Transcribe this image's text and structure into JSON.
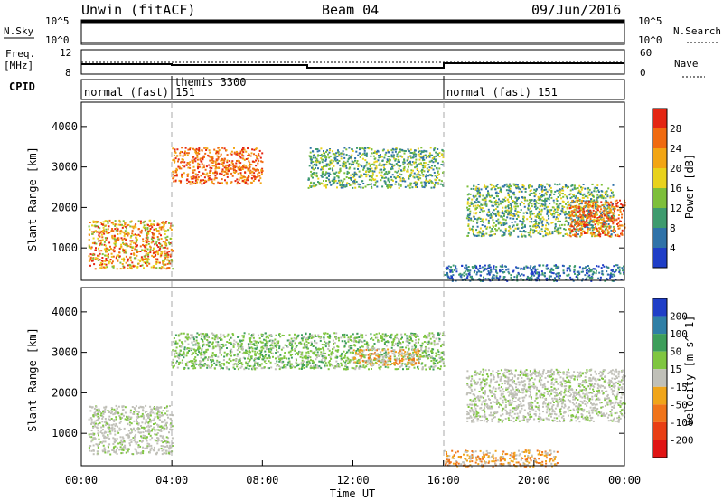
{
  "header": {
    "station": "Unwin (fitACF)",
    "beam": "Beam 04",
    "date": "09/Jun/2016"
  },
  "strips": {
    "nsky": {
      "label": "N.Sky",
      "ticks": [
        "10^5",
        "10^0"
      ]
    },
    "nsearch": {
      "label": "N.Search",
      "ticks": [
        "10^5",
        "10^0"
      ]
    },
    "freq": {
      "label_top": "Freq.",
      "label_bottom": "[MHz]",
      "ticks": [
        12,
        8
      ]
    },
    "nave": {
      "label": "Nave",
      "ticks": [
        60,
        0
      ]
    },
    "cpid": {
      "label": "CPID",
      "modes": [
        {
          "name": "normal (fast) 151",
          "start_hour": 0,
          "end_hour": 4,
          "divider": 4
        },
        {
          "name": "themis 3300",
          "start_hour": 4,
          "end_hour": 16
        },
        {
          "name": "normal (fast) 151",
          "start_hour": 16,
          "end_hour": 24
        }
      ],
      "overlap_label": "151"
    }
  },
  "colors": {
    "power": [
      "#1f3ec7",
      "#2f72a8",
      "#3e9b6e",
      "#7dbf3a",
      "#e8d21c",
      "#f2a514",
      "#f06a10",
      "#e42512"
    ],
    "velocity": [
      "#1f3ec7",
      "#2f7fa6",
      "#3d9e5a",
      "#7fc640",
      "#c0c0b8",
      "#f0a51a",
      "#f0741a",
      "#e83e14",
      "#e01414"
    ],
    "dashed_divider": "#aaaaaa"
  },
  "chart_data": [
    {
      "type": "heatmap",
      "id": "power",
      "xlabel": "",
      "ylabel": "Slant Range [km]",
      "ylim": [
        200,
        4600
      ],
      "yticks": [
        1000,
        2000,
        3000,
        4000
      ],
      "xlim": [
        0,
        24
      ],
      "colorbar": {
        "label": "Power [dB]",
        "ticks": [
          28,
          24,
          20,
          16,
          12,
          8,
          4
        ]
      },
      "echo_regions": [
        {
          "t0": 0.3,
          "t1": 4.0,
          "r0": 500,
          "r1": 1700,
          "level": "medium-high"
        },
        {
          "t0": 4.0,
          "t1": 8.0,
          "r0": 2600,
          "r1": 3500,
          "level": "high"
        },
        {
          "t0": 10.0,
          "t1": 16.0,
          "r0": 2500,
          "r1": 3500,
          "level": "medium"
        },
        {
          "t0": 16.0,
          "t1": 24.0,
          "r0": 200,
          "r1": 600,
          "level": "low"
        },
        {
          "t0": 17.0,
          "t1": 23.5,
          "r0": 1300,
          "r1": 2600,
          "level": "medium"
        },
        {
          "t0": 21.5,
          "t1": 24.0,
          "r0": 1300,
          "r1": 2200,
          "level": "high"
        }
      ]
    },
    {
      "type": "heatmap",
      "id": "velocity",
      "xlabel": "Time UT",
      "ylabel": "Slant Range [km]",
      "ylim": [
        200,
        4600
      ],
      "yticks": [
        1000,
        2000,
        3000,
        4000
      ],
      "xlim": [
        0,
        24
      ],
      "xticks": [
        "00:00",
        "04:00",
        "08:00",
        "12:00",
        "16:00",
        "20:00",
        "00:00"
      ],
      "colorbar": {
        "label": "Velocity [m s^-1]",
        "ticks": [
          200,
          100,
          50,
          15,
          -15,
          -50,
          -100,
          -200
        ]
      },
      "echo_regions": [
        {
          "t0": 0.3,
          "t1": 4.0,
          "r0": 500,
          "r1": 1700,
          "level": "near-zero"
        },
        {
          "t0": 4.0,
          "t1": 16.0,
          "r0": 2600,
          "r1": 3500,
          "level": "slightly-positive"
        },
        {
          "t0": 12.0,
          "t1": 15.0,
          "r0": 2700,
          "r1": 3100,
          "level": "negative"
        },
        {
          "t0": 16.0,
          "t1": 21.0,
          "r0": 200,
          "r1": 600,
          "level": "negative"
        },
        {
          "t0": 17.0,
          "t1": 24.0,
          "r0": 1300,
          "r1": 2600,
          "level": "near-zero"
        }
      ]
    }
  ]
}
